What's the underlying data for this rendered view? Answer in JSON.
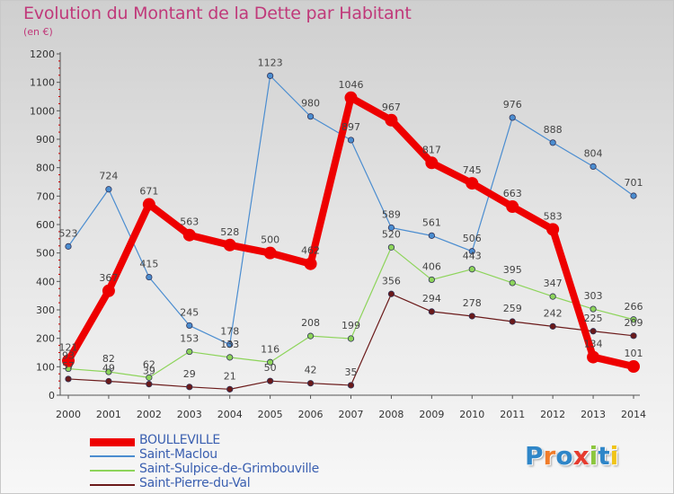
{
  "header": {
    "title": "Evolution du Montant de la Dette par Habitant",
    "subtitle": "(en €)"
  },
  "logo": {
    "letters": [
      "P",
      "r",
      "o",
      "x",
      "i",
      "t",
      "i"
    ],
    "colors": [
      "#2f86c8",
      "#f07c2a",
      "#2f86c8",
      "#e63b2e",
      "#8cc63e",
      "#2f86c8",
      "#f0c419"
    ]
  },
  "chart_data": {
    "type": "line",
    "title": "Evolution du Montant de la Dette par Habitant",
    "subtitle": "(en €)",
    "x": [
      "2000",
      "2001",
      "2002",
      "2003",
      "2004",
      "2005",
      "2006",
      "2007",
      "2008",
      "2009",
      "2010",
      "2011",
      "2012",
      "2013",
      "2014"
    ],
    "ylim": [
      0,
      1200
    ],
    "yticks": [
      0,
      100,
      200,
      300,
      400,
      500,
      600,
      700,
      800,
      900,
      1000,
      1100,
      1200
    ],
    "grid": false,
    "legend_position": "bottom-left",
    "series": [
      {
        "name": "BOULLEVILLE",
        "color": "#ee0000",
        "values": [
          121,
          367,
          671,
          563,
          528,
          500,
          462,
          1046,
          967,
          817,
          745,
          663,
          583,
          134,
          101
        ],
        "labels": [
          "121",
          "367",
          "671",
          "563",
          "528",
          "500",
          "462",
          "1046",
          "967",
          "817",
          "745",
          "663",
          "583",
          "134",
          "101"
        ]
      },
      {
        "name": "Saint-Maclou",
        "color": "#4b8dd0",
        "values": [
          523,
          724,
          415,
          245,
          178,
          1123,
          980,
          897,
          589,
          561,
          506,
          976,
          888,
          804,
          701
        ],
        "labels": [
          "523",
          "724",
          "415",
          "245",
          "178",
          "1123",
          "980",
          "897",
          "589",
          "561",
          "506",
          "976",
          "888",
          "804",
          "701"
        ]
      },
      {
        "name": "Saint-Sulpice-de-Grimbouville",
        "color": "#8dd45a",
        "values": [
          93,
          82,
          62,
          153,
          133,
          116,
          208,
          199,
          520,
          406,
          443,
          395,
          347,
          303,
          266
        ],
        "labels": [
          "93",
          "82",
          "62",
          "153",
          "133",
          "116",
          "208",
          "199",
          "520",
          "406",
          "443",
          "395",
          "347",
          "303",
          "266"
        ]
      },
      {
        "name": "Saint-Pierre-du-Val",
        "color": "#6b1a1a",
        "values": [
          57,
          49,
          39,
          29,
          21,
          50,
          42,
          35,
          356,
          294,
          278,
          259,
          242,
          225,
          209
        ],
        "labels": [
          "57",
          "49",
          "39",
          "29",
          "21",
          "50",
          "42",
          "35",
          "356",
          "294",
          "278",
          "259",
          "242",
          "225",
          "209"
        ]
      }
    ]
  }
}
